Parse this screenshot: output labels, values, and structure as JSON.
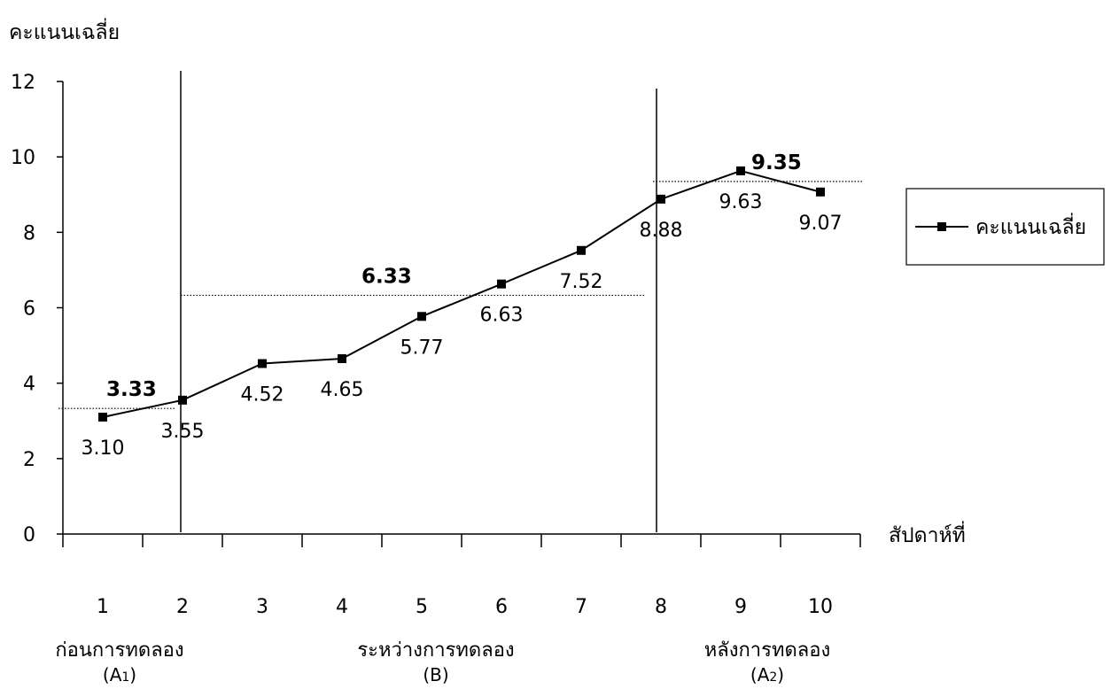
{
  "chart_data": {
    "type": "line",
    "title": "",
    "ylabel": "คะแนนเฉลี่ย",
    "xlabel": "สัปดาห์ที่",
    "ylim": [
      0,
      12
    ],
    "yticks": [
      "0",
      "2",
      "4",
      "6",
      "8",
      "10",
      "12"
    ],
    "categories": [
      "1",
      "2",
      "3",
      "4",
      "5",
      "6",
      "7",
      "8",
      "9",
      "10"
    ],
    "series": [
      {
        "name": "คะแนนเฉลี่ย",
        "values": [
          3.1,
          3.55,
          4.52,
          4.65,
          5.77,
          6.63,
          7.52,
          8.88,
          9.63,
          9.07
        ],
        "labels": [
          "3.10",
          "3.55",
          "4.52",
          "4.65",
          "5.77",
          "6.63",
          "7.52",
          "8.88",
          "9.63",
          "9.07"
        ]
      }
    ],
    "phases": [
      {
        "name": "ก่อนการทดลอง",
        "code": "(A1)",
        "mean": 3.33,
        "mean_label": "3.33"
      },
      {
        "name": "ระหว่างการทดลอง",
        "code": "(B)",
        "mean": 6.33,
        "mean_label": "6.33"
      },
      {
        "name": "หลังการทดลอง",
        "code": "(A2)",
        "mean": 9.35,
        "mean_label": "9.35"
      }
    ],
    "legend": {
      "label": "คะแนนเฉลี่ย",
      "position": "right"
    },
    "grid": false,
    "colors": {
      "line": "#000000",
      "marker": "#000000",
      "mean_line": "#000000"
    }
  }
}
